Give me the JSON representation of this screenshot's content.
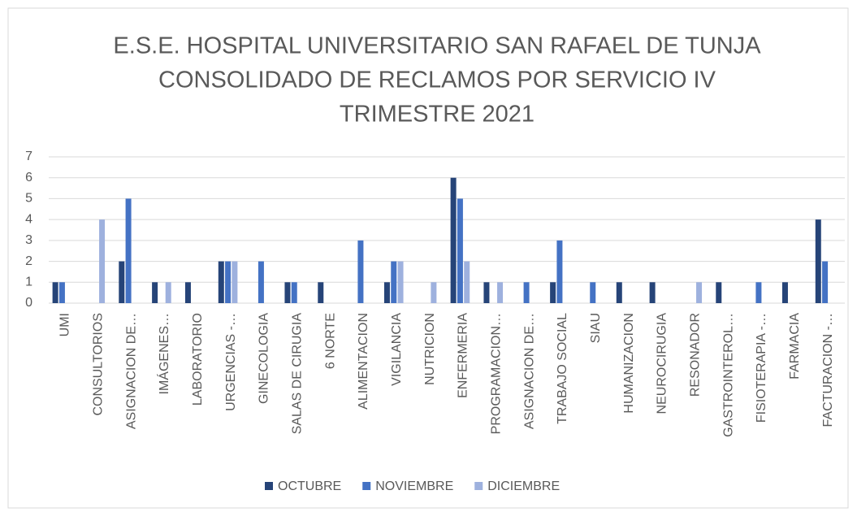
{
  "chart_data": {
    "type": "bar",
    "title": [
      "E.S.E. HOSPITAL UNIVERSITARIO SAN RAFAEL DE TUNJA",
      "CONSOLIDADO DE RECLAMOS POR SERVICIO IV",
      "TRIMESTRE 2021"
    ],
    "categories": [
      "UMI",
      "CONSULTORIOS",
      "ASIGNACION DE…",
      "IMÁGENES…",
      "LABORATORIO",
      "URGENCIAS -…",
      "GINECOLOGIA",
      "SALAS DE CIRUGIA",
      "6 NORTE",
      "ALIMENTACION",
      "VIGILANCIA",
      "NUTRICION",
      "ENFERMERIA",
      "PROGRAMACION…",
      "ASIGNACION DE…",
      "TRABAJO SOCIAL",
      "SIAU",
      "HUMANIZACION",
      "NEUROCIRUGIA",
      "RESONADOR",
      "GASTROINTEROL…",
      "FISIOTERAPIA -…",
      "FARMACIA",
      "FACTURACION -…"
    ],
    "series": [
      {
        "name": "OCTUBRE",
        "color": "#264478",
        "values": [
          1,
          0,
          2,
          1,
          1,
          2,
          0,
          1,
          1,
          0,
          1,
          0,
          6,
          1,
          0,
          1,
          0,
          1,
          1,
          0,
          1,
          0,
          1,
          4
        ]
      },
      {
        "name": "NOVIEMBRE",
        "color": "#4472c4",
        "values": [
          1,
          0,
          5,
          0,
          0,
          2,
          2,
          1,
          0,
          3,
          2,
          0,
          5,
          0,
          1,
          3,
          1,
          0,
          0,
          0,
          0,
          1,
          0,
          2
        ]
      },
      {
        "name": "DICIEMBRE",
        "color": "#9eb1de",
        "values": [
          0,
          4,
          0,
          1,
          0,
          2,
          0,
          0,
          0,
          0,
          2,
          1,
          2,
          1,
          0,
          0,
          0,
          0,
          0,
          1,
          0,
          0,
          0,
          0
        ]
      }
    ],
    "ylim": [
      0,
      7
    ],
    "yticks": [
      0,
      1,
      2,
      3,
      4,
      5,
      6,
      7
    ],
    "grid": true,
    "legend": "bottom"
  }
}
